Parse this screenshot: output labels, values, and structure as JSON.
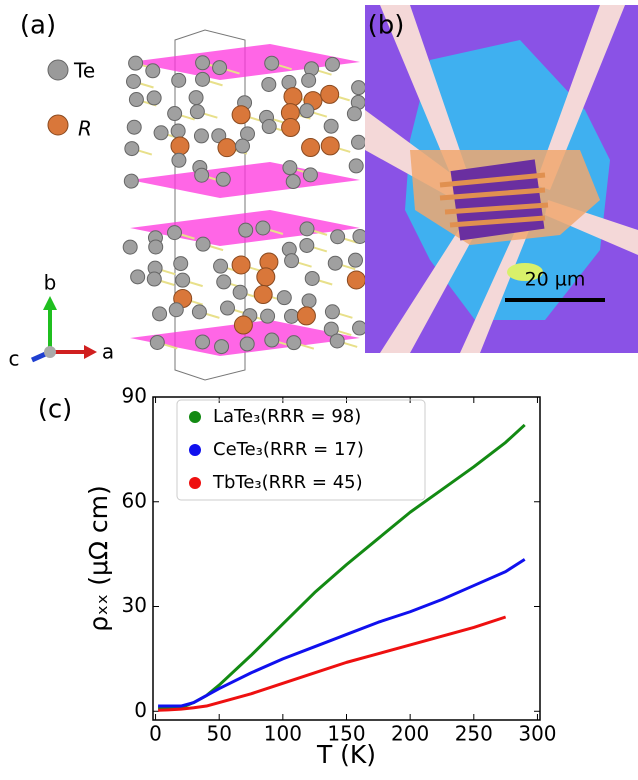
{
  "panel_a": {
    "label": "(a)",
    "legend_te": "Te",
    "legend_r": "R",
    "axis_a": "a",
    "axis_b": "b",
    "axis_c": "c"
  },
  "panel_b": {
    "label": "(b)",
    "scale_bar": "20 µm"
  },
  "chart_data": {
    "type": "line",
    "panel_label": "(c)",
    "xlabel": "T (K)",
    "ylabel": "ρₓₓ (μΩ cm)",
    "x": [
      2,
      10,
      20,
      30,
      40,
      50,
      75,
      100,
      125,
      150,
      175,
      200,
      225,
      250,
      275,
      290
    ],
    "series": [
      {
        "name": "LaTe₃(RRR = 98)",
        "color": "#138a13",
        "values": [
          1,
          1,
          1,
          2.5,
          4.5,
          7.5,
          16,
          25,
          34,
          42,
          49.5,
          57,
          63.5,
          70,
          77,
          82
        ]
      },
      {
        "name": "CeTe₃(RRR = 17)",
        "color": "#1010ee",
        "values": [
          1.5,
          1.5,
          1.5,
          2.5,
          4.5,
          6.5,
          11,
          15,
          18.5,
          22,
          25.5,
          28.5,
          32,
          36,
          40,
          43.5
        ]
      },
      {
        "name": "TbTe₃(RRR = 45)",
        "color": "#ee1010",
        "values": [
          0.3,
          0.4,
          0.6,
          1,
          1.5,
          2.5,
          5,
          8,
          11,
          14,
          16.5,
          19,
          21.5,
          24,
          27,
          null
        ]
      }
    ],
    "xlim": [
      -2,
      302
    ],
    "ylim": [
      -2.5,
      90
    ],
    "xticks": [
      0,
      50,
      100,
      150,
      200,
      250,
      300
    ],
    "yticks": [
      0,
      30,
      60,
      90
    ],
    "legend": "upper left",
    "grid": false
  }
}
